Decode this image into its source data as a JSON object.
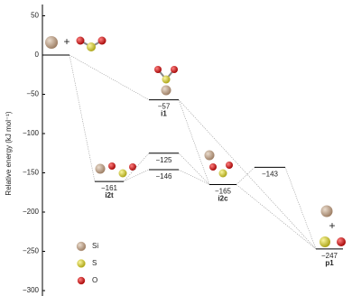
{
  "chart_data": {
    "type": "energy-diagram",
    "y_label": "Relative energy (kJ mol⁻¹)",
    "categories": [
      null,
      "i2t",
      "i1",
      null,
      null,
      "i2c",
      null,
      "p1"
    ],
    "values": [
      0,
      -161,
      -57,
      -125,
      -146,
      -165,
      -143,
      -247
    ],
    "value_labels": [
      null,
      "−161",
      "−57",
      "−125",
      "−146",
      "−165",
      "−143",
      "−247"
    ],
    "ylim": [
      -300,
      50
    ],
    "yticks": [
      50,
      0,
      {
        "value": -50,
        "label": "−50"
      },
      {
        "value": -100,
        "label": "−100"
      },
      {
        "value": -150,
        "label": "−150"
      },
      {
        "value": -200,
        "label": "−200"
      },
      {
        "value": -250,
        "label": "−250"
      },
      {
        "value": -300,
        "label": "−300"
      }
    ],
    "annotations": [
      "+",
      "+"
    ],
    "legend": [
      {
        "name": "Si",
        "color": "#b89a82"
      },
      {
        "name": "S",
        "color": "#d8d030"
      },
      {
        "name": "O",
        "color": "#d01010"
      }
    ]
  }
}
